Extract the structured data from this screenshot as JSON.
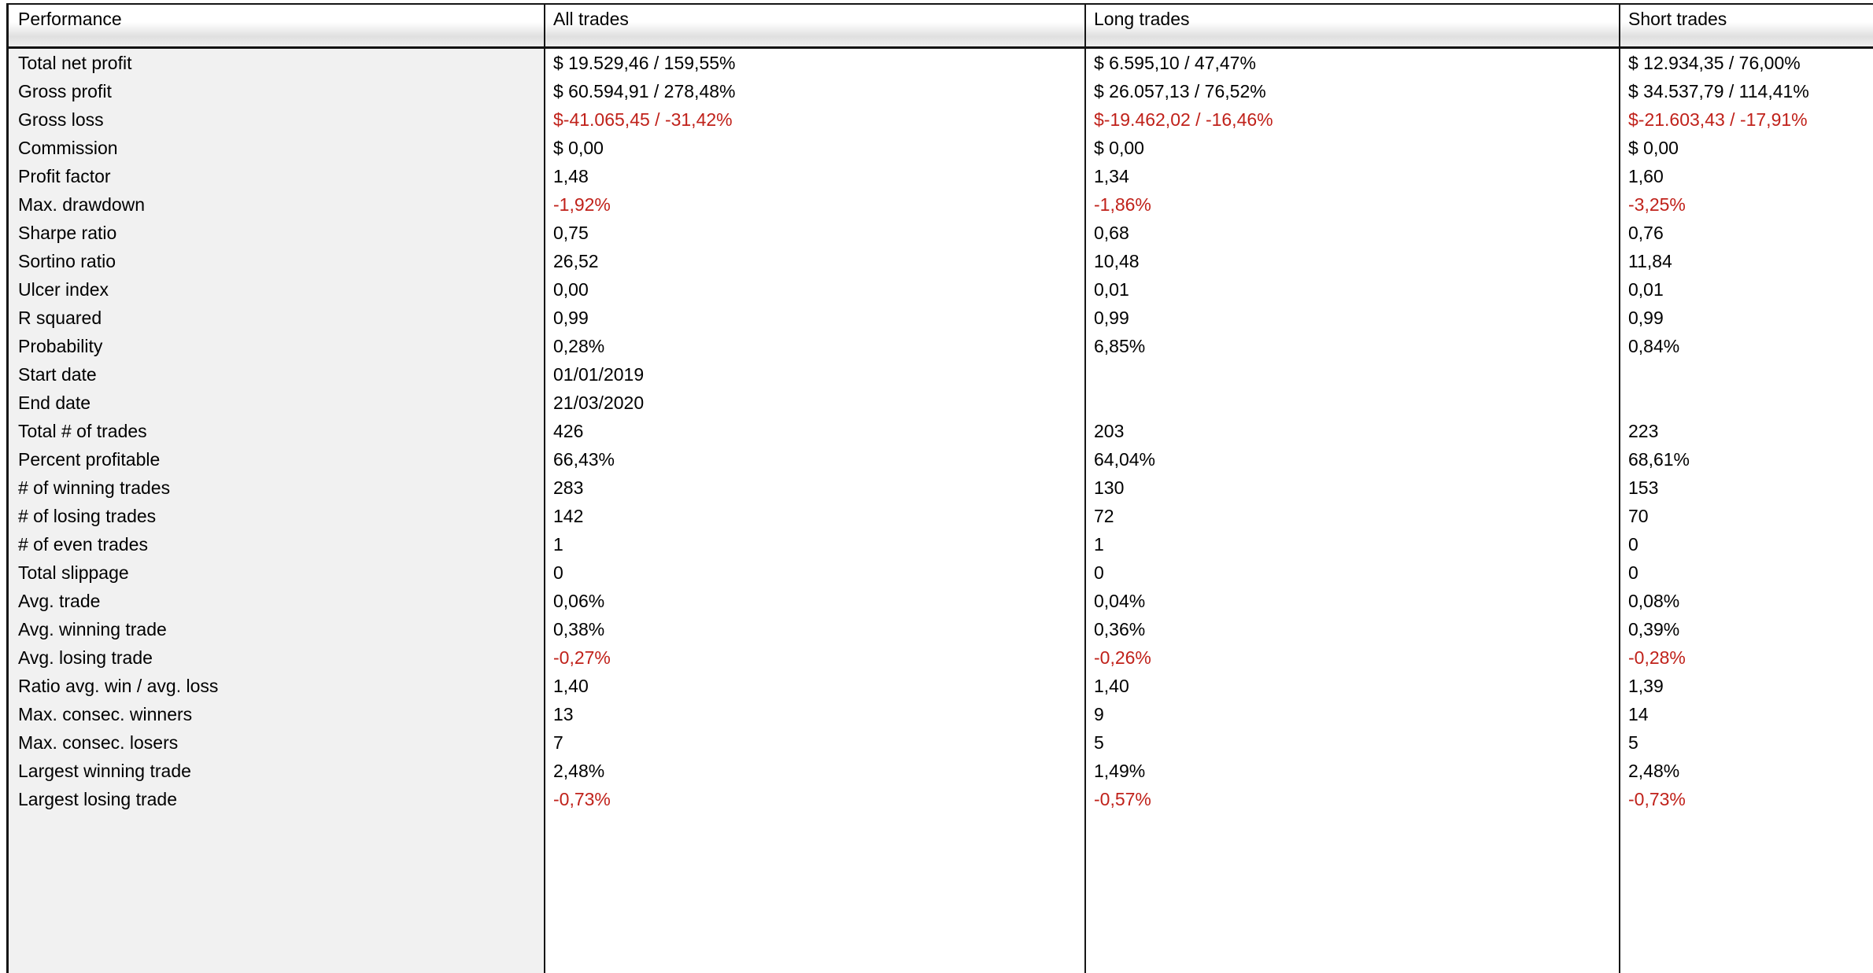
{
  "header": {
    "columns": [
      "Performance",
      "All trades",
      "Long trades",
      "Short trades"
    ]
  },
  "colors": {
    "negative_value": "#c0211a",
    "label_column_bg": "#f1f1f1",
    "separator_band_top": "#d6d6d6",
    "border": "#161616"
  },
  "table": {
    "rows": [
      {
        "label": "Total net profit",
        "all": "$ 19.529,46 / 159,55%",
        "long": "$ 6.595,10 / 47,47%",
        "short": "$ 12.934,35 / 76,00%"
      },
      {
        "label": "Gross profit",
        "all": "$ 60.594,91 / 278,48%",
        "long": "$ 26.057,13 / 76,52%",
        "short": "$ 34.537,79 / 114,41%"
      },
      {
        "label": "Gross loss",
        "all": "$-41.065,45 / -31,42%",
        "long": "$-19.462,02 / -16,46%",
        "short": "$-21.603,43 / -17,91%"
      },
      {
        "label": "Commission",
        "all": "$ 0,00",
        "long": "$ 0,00",
        "short": "$ 0,00"
      },
      {
        "label": "Profit factor",
        "all": "1,48",
        "long": "1,34",
        "short": "1,60"
      },
      {
        "label": "Max. drawdown",
        "all": "-1,92%",
        "long": "-1,86%",
        "short": "-3,25%"
      },
      {
        "label": "Sharpe ratio",
        "all": "0,75",
        "long": "0,68",
        "short": "0,76"
      },
      {
        "label": "Sortino ratio",
        "all": "26,52",
        "long": "10,48",
        "short": "11,84"
      },
      {
        "label": "Ulcer index",
        "all": "0,00",
        "long": "0,01",
        "short": "0,01"
      },
      {
        "label": "R squared",
        "all": "0,99",
        "long": "0,99",
        "short": "0,99"
      },
      {
        "label": "Probability",
        "all": "0,28%",
        "long": "6,85%",
        "short": "0,84%"
      },
      {
        "type": "blank"
      },
      {
        "label": "Start date",
        "all": "01/01/2019",
        "long": "",
        "short": ""
      },
      {
        "label": "End date",
        "all": "21/03/2020",
        "long": "",
        "short": ""
      },
      {
        "type": "band"
      },
      {
        "label": "Total # of trades",
        "all": "426",
        "long": "203",
        "short": "223"
      },
      {
        "label": "Percent profitable",
        "all": "66,43%",
        "long": "64,04%",
        "short": "68,61%"
      },
      {
        "label": "# of winning trades",
        "all": "283",
        "long": "130",
        "short": "153"
      },
      {
        "label": "# of losing trades",
        "all": "142",
        "long": "72",
        "short": "70"
      },
      {
        "label": "# of even trades",
        "all": "1",
        "long": "1",
        "short": "0"
      },
      {
        "type": "blank"
      },
      {
        "label": "Total slippage",
        "all": "0",
        "long": "0",
        "short": "0"
      },
      {
        "type": "blank"
      },
      {
        "label": "Avg. trade",
        "all": "0,06%",
        "long": "0,04%",
        "short": "0,08%"
      },
      {
        "label": "Avg. winning trade",
        "all": "0,38%",
        "long": "0,36%",
        "short": "0,39%"
      },
      {
        "label": "Avg. losing trade",
        "all": "-0,27%",
        "long": "-0,26%",
        "short": "-0,28%"
      },
      {
        "label": "Ratio avg. win / avg. loss",
        "all": "1,40",
        "long": "1,40",
        "short": "1,39"
      },
      {
        "type": "blank"
      },
      {
        "label": "Max. consec. winners",
        "all": "13",
        "long": "9",
        "short": "14"
      },
      {
        "label": "Max. consec. losers",
        "all": "7",
        "long": "5",
        "short": "5"
      },
      {
        "label": "Largest winning trade",
        "all": "2,48%",
        "long": "1,49%",
        "short": "2,48%"
      },
      {
        "label": "Largest losing trade",
        "all": "-0,73%",
        "long": "-0,57%",
        "short": "-0,73%"
      }
    ]
  }
}
